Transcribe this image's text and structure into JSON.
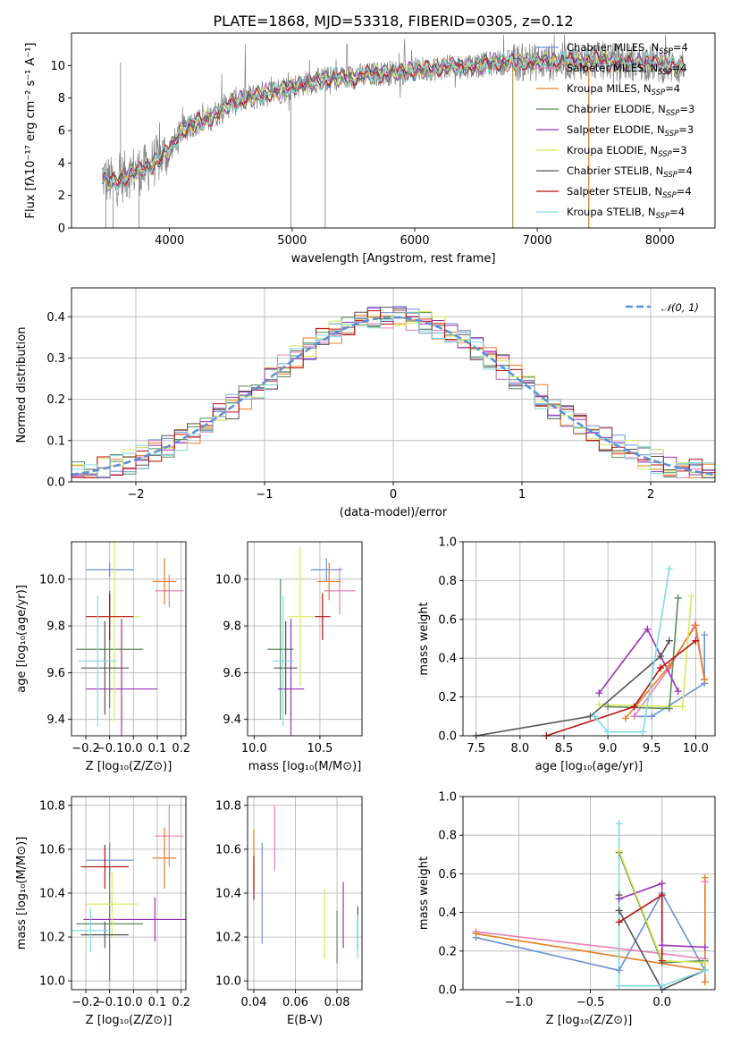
{
  "colors": {
    "chabrier_miles": "#6a8fd9",
    "salpeter_miles": "#e680b8",
    "kroupa_miles": "#e67e22",
    "chabrier_elodie": "#5a8a5a",
    "salpeter_elodie": "#9b30b8",
    "kroupa_elodie": "#d9e85a",
    "chabrier_stelib": "#555555",
    "salpeter_stelib": "#b80f0f",
    "kroupa_stelib": "#7fdbe0",
    "gaussian": "#5b8fd9"
  },
  "chart_data": [
    {
      "id": "spectrum",
      "type": "line",
      "title": "PLATE=1868, MJD=53318, FIBERID=0305, z=0.12",
      "xlabel": "wavelength [Angstrom, rest frame]",
      "ylabel": "Flux [fλ10⁻¹⁷ erg cm⁻² s⁻¹ A⁻¹]",
      "xlim": [
        3200,
        8450
      ],
      "ylim": [
        0,
        12
      ],
      "xticks": [
        "4000",
        "5000",
        "6000",
        "7000",
        "8000"
      ],
      "yticks": [
        "0",
        "2",
        "4",
        "6",
        "8",
        "10"
      ],
      "grid": false,
      "legend_position": "top-right",
      "legend": [
        {
          "label": "Chabrier MILES, N",
          "sub": "SSP",
          "suffix": "=4",
          "color_key": "chabrier_miles"
        },
        {
          "label": "Salpeter MILES, N",
          "sub": "SSP",
          "suffix": "=4",
          "color_key": "salpeter_miles"
        },
        {
          "label": "Kroupa MILES, N",
          "sub": "SSP",
          "suffix": "=4",
          "color_key": "kroupa_miles"
        },
        {
          "label": "Chabrier ELODIE, N",
          "sub": "SSP",
          "suffix": "=3",
          "color_key": "chabrier_elodie"
        },
        {
          "label": "Salpeter ELODIE, N",
          "sub": "SSP",
          "suffix": "=3",
          "color_key": "salpeter_elodie"
        },
        {
          "label": "Kroupa ELODIE, N",
          "sub": "SSP",
          "suffix": "=3",
          "color_key": "kroupa_elodie"
        },
        {
          "label": "Chabrier STELIB, N",
          "sub": "SSP",
          "suffix": "=4",
          "color_key": "chabrier_stelib"
        },
        {
          "label": "Salpeter STELIB, N",
          "sub": "SSP",
          "suffix": "=4",
          "color_key": "salpeter_stelib"
        },
        {
          "label": "Kroupa STELIB, N",
          "sub": "SSP",
          "suffix": "=4",
          "color_key": "kroupa_stelib"
        }
      ],
      "data_color": "#808080",
      "continuum": {
        "x": [
          3450,
          3500,
          3550,
          3600,
          3700,
          3800,
          3900,
          4000,
          4100,
          4200,
          4300,
          4500,
          4700,
          4900,
          5100,
          5300,
          5500,
          5700,
          5900,
          6100,
          6300,
          6500,
          6700,
          6900,
          7100,
          7300,
          7500,
          7700,
          7900,
          8100,
          8200
        ],
        "y": [
          3.2,
          2.9,
          2.8,
          3.0,
          3.5,
          3.6,
          4.2,
          4.8,
          6.0,
          6.5,
          6.6,
          7.7,
          8.1,
          8.5,
          8.9,
          9.2,
          9.3,
          9.5,
          9.6,
          9.8,
          9.9,
          10.0,
          10.2,
          10.2,
          10.2,
          10.3,
          10.3,
          10.2,
          10.2,
          10.0,
          9.9
        ]
      },
      "spikes": [
        {
          "x": 3480,
          "y": 0
        },
        {
          "x": 3540,
          "y": 0
        },
        {
          "x": 3600,
          "y": 10.2
        },
        {
          "x": 3750,
          "y": 0
        },
        {
          "x": 4990,
          "y": 0
        },
        {
          "x": 5270,
          "y": 0
        },
        {
          "x": 6800,
          "y": 0
        },
        {
          "x": 7420,
          "y": 0
        }
      ]
    },
    {
      "id": "residuals",
      "type": "histogram",
      "xlabel": "(data-model)/error",
      "ylabel": "Normed distribution",
      "xlim": [
        -2.5,
        2.5
      ],
      "ylim": [
        0,
        0.47
      ],
      "xticks": [
        "−2",
        "−1",
        "0",
        "1",
        "2"
      ],
      "yticks": [
        "0.0",
        "0.1",
        "0.2",
        "0.3",
        "0.4"
      ],
      "grid": true,
      "legend_position": "top-right",
      "legend": [
        {
          "label": "𝒩(0, 1)",
          "color_key": "gaussian",
          "dashed": true
        }
      ],
      "bin_width": 0.1
    },
    {
      "id": "age-vs-Z",
      "type": "errorbar",
      "xlabel": "Z [log₁₀(Z/Z⊙)]",
      "ylabel": "age  [log₁₀(age/yr)]",
      "xlim": [
        -0.26,
        0.22
      ],
      "ylim": [
        9.33,
        10.16
      ],
      "xticks": [
        "−0.2",
        "−0.1",
        "0.0",
        "0.1",
        "0.2"
      ],
      "yticks": [
        "9.4",
        "9.6",
        "9.8",
        "10.0"
      ],
      "grid": true,
      "points": [
        {
          "series": "chabrier_miles",
          "x": -0.1,
          "xerr": 0.1,
          "y": 10.04,
          "yerr": 0.03
        },
        {
          "series": "salpeter_miles",
          "x": 0.15,
          "xerr": 0.06,
          "y": 9.95,
          "yerr": 0.07
        },
        {
          "series": "kroupa_miles",
          "x": 0.13,
          "xerr": 0.05,
          "y": 9.99,
          "yerr": 0.1
        },
        {
          "series": "chabrier_elodie",
          "x": -0.1,
          "xerr": 0.14,
          "y": 9.7,
          "yerr": 0.25
        },
        {
          "series": "salpeter_elodie",
          "x": -0.05,
          "xerr": 0.15,
          "y": 9.53,
          "yerr": 0.3
        },
        {
          "series": "kroupa_elodie",
          "x": -0.08,
          "xerr": 0.11,
          "y": 9.84,
          "yerr": 0.45
        },
        {
          "series": "chabrier_stelib",
          "x": -0.12,
          "xerr": 0.1,
          "y": 9.62,
          "yerr": 0.2
        },
        {
          "series": "salpeter_stelib",
          "x": -0.1,
          "xerr": 0.1,
          "y": 9.84,
          "yerr": 0.1
        },
        {
          "series": "kroupa_stelib",
          "x": -0.15,
          "xerr": 0.08,
          "y": 9.65,
          "yerr": 0.28
        }
      ]
    },
    {
      "id": "age-vs-mass",
      "type": "errorbar",
      "xlabel": "mass [log₁₀(M/M⊙)]",
      "ylabel": "",
      "xlim": [
        9.95,
        10.82
      ],
      "ylim": [
        9.33,
        10.16
      ],
      "xticks": [
        "10.0",
        "10.5"
      ],
      "yticks": [
        "9.4",
        "9.6",
        "9.8",
        "10.0"
      ],
      "grid": true,
      "points": [
        {
          "series": "chabrier_miles",
          "x": 10.55,
          "xerr": 0.12,
          "y": 10.04,
          "yerr": 0.05
        },
        {
          "series": "salpeter_miles",
          "x": 10.65,
          "xerr": 0.12,
          "y": 9.95,
          "yerr": 0.1
        },
        {
          "series": "kroupa_miles",
          "x": 10.57,
          "xerr": 0.09,
          "y": 9.99,
          "yerr": 0.08
        },
        {
          "series": "chabrier_elodie",
          "x": 10.2,
          "xerr": 0.1,
          "y": 9.7,
          "yerr": 0.3
        },
        {
          "series": "salpeter_elodie",
          "x": 10.28,
          "xerr": 0.1,
          "y": 9.53,
          "yerr": 0.3
        },
        {
          "series": "kroupa_elodie",
          "x": 10.35,
          "xerr": 0.1,
          "y": 9.84,
          "yerr": 0.3
        },
        {
          "series": "chabrier_stelib",
          "x": 10.24,
          "xerr": 0.09,
          "y": 9.62,
          "yerr": 0.2
        },
        {
          "series": "salpeter_stelib",
          "x": 10.52,
          "xerr": 0.06,
          "y": 9.84,
          "yerr": 0.1
        },
        {
          "series": "kroupa_stelib",
          "x": 10.22,
          "xerr": 0.08,
          "y": 9.65,
          "yerr": 0.28
        }
      ]
    },
    {
      "id": "weight-vs-age",
      "type": "line",
      "xlabel": "age  [log₁₀(age/yr)]",
      "ylabel": "mass weight",
      "xlim": [
        7.35,
        10.22
      ],
      "ylim": [
        0,
        1
      ],
      "xticks": [
        "7.5",
        "8.0",
        "8.5",
        "9.0",
        "9.5",
        "10.0"
      ],
      "yticks": [
        "0.0",
        "0.2",
        "0.4",
        "0.6",
        "0.8",
        "1.0"
      ],
      "grid": true,
      "series": [
        {
          "key": "chabrier_miles",
          "x": [
            9.3,
            9.5,
            10.1,
            10.1
          ],
          "y": [
            0.1,
            0.1,
            0.27,
            0.52
          ]
        },
        {
          "key": "salpeter_miles",
          "x": [
            9.3,
            9.7,
            9.99,
            10.1
          ],
          "y": [
            0.1,
            0.35,
            0.57,
            0.29
          ]
        },
        {
          "key": "kroupa_miles",
          "x": [
            9.2,
            9.7,
            10.0,
            10.1
          ],
          "y": [
            0.09,
            0.36,
            0.57,
            0.29
          ]
        },
        {
          "key": "chabrier_elodie",
          "x": [
            9.0,
            9.7,
            9.8
          ],
          "y": [
            0.15,
            0.14,
            0.71
          ]
        },
        {
          "key": "salpeter_elodie",
          "x": [
            8.9,
            9.45,
            9.8
          ],
          "y": [
            0.22,
            0.55,
            0.23
          ]
        },
        {
          "key": "kroupa_elodie",
          "x": [
            8.9,
            9.85,
            9.95
          ],
          "y": [
            0.16,
            0.15,
            0.72
          ]
        },
        {
          "key": "chabrier_stelib",
          "x": [
            7.5,
            8.8,
            9.6,
            9.7
          ],
          "y": [
            0.0,
            0.1,
            0.41,
            0.49
          ]
        },
        {
          "key": "salpeter_stelib",
          "x": [
            8.3,
            9.3,
            9.6,
            10.0
          ],
          "y": [
            0.0,
            0.15,
            0.35,
            0.49
          ]
        },
        {
          "key": "kroupa_stelib",
          "x": [
            8.85,
            9.0,
            9.4,
            9.7
          ],
          "y": [
            0.1,
            0.02,
            0.02,
            0.86
          ]
        }
      ]
    },
    {
      "id": "mass-vs-Z",
      "type": "errorbar",
      "xlabel": "Z [log₁₀(Z/Z⊙)]",
      "ylabel": "mass [log₁₀(M/M⊙)]",
      "xlim": [
        -0.26,
        0.22
      ],
      "ylim": [
        9.96,
        10.84
      ],
      "xticks": [
        "−0.2",
        "−0.1",
        "0.0",
        "0.1",
        "0.2"
      ],
      "yticks": [
        "10.0",
        "10.2",
        "10.4",
        "10.6",
        "10.8"
      ],
      "grid": true,
      "points": [
        {
          "series": "chabrier_miles",
          "x": -0.1,
          "xerr": 0.1,
          "y": 10.55,
          "yerr": 0.08
        },
        {
          "series": "salpeter_miles",
          "x": 0.15,
          "xerr": 0.06,
          "y": 10.66,
          "yerr": 0.14
        },
        {
          "series": "kroupa_miles",
          "x": 0.13,
          "xerr": 0.05,
          "y": 10.56,
          "yerr": 0.14
        },
        {
          "series": "chabrier_elodie",
          "x": -0.1,
          "xerr": 0.14,
          "y": 10.26,
          "yerr": 0.26
        },
        {
          "series": "salpeter_elodie",
          "x": 0.09,
          "xerr": 0.3,
          "y": 10.28,
          "yerr": 0.1
        },
        {
          "series": "kroupa_elodie",
          "x": -0.09,
          "xerr": 0.11,
          "y": 10.35,
          "yerr": 0.15
        },
        {
          "series": "chabrier_stelib",
          "x": -0.12,
          "xerr": 0.1,
          "y": 10.21,
          "yerr": 0.06
        },
        {
          "series": "salpeter_stelib",
          "x": -0.12,
          "xerr": 0.1,
          "y": 10.52,
          "yerr": 0.1
        },
        {
          "series": "kroupa_stelib",
          "x": -0.18,
          "xerr": 0.08,
          "y": 10.23,
          "yerr": 0.1
        }
      ]
    },
    {
      "id": "mass-vs-ebv",
      "type": "errorbar",
      "xlabel": "E(B-V)",
      "ylabel": "",
      "xlim": [
        0.037,
        0.092
      ],
      "ylim": [
        9.96,
        10.84
      ],
      "xticks": [
        "0.04",
        "0.06",
        "0.08"
      ],
      "yticks": [
        "10.0",
        "10.2",
        "10.4",
        "10.6",
        "10.8"
      ],
      "grid": true,
      "points": [
        {
          "series": "chabrier_miles",
          "x": 0.044,
          "y": 10.4,
          "yerr": 0.23
        },
        {
          "series": "salpeter_miles",
          "x": 0.05,
          "y": 10.65,
          "yerr": 0.15
        },
        {
          "series": "kroupa_miles",
          "x": 0.04,
          "y": 10.55,
          "yerr": 0.14
        },
        {
          "series": "chabrier_elodie",
          "x": 0.08,
          "y": 10.2,
          "yerr": 0.12
        },
        {
          "series": "salpeter_elodie",
          "x": 0.083,
          "y": 10.3,
          "yerr": 0.15
        },
        {
          "series": "kroupa_elodie",
          "x": 0.074,
          "y": 10.26,
          "yerr": 0.16
        },
        {
          "series": "chabrier_stelib",
          "x": 0.09,
          "y": 10.24,
          "yerr": 0.1
        },
        {
          "series": "salpeter_stelib",
          "x": 0.04,
          "y": 10.47,
          "yerr": 0.1
        },
        {
          "series": "kroupa_stelib",
          "x": 0.09,
          "y": 10.2,
          "yerr": 0.1
        }
      ]
    },
    {
      "id": "weight-vs-Z",
      "type": "line",
      "xlabel": "Z [log₁₀(Z/Z⊙)]",
      "ylabel": "mass weight",
      "xlim": [
        -1.39,
        0.37
      ],
      "ylim": [
        0,
        1
      ],
      "xticks": [
        "−1.0",
        "−0.5",
        "0.0"
      ],
      "yticks": [
        "0.0",
        "0.2",
        "0.4",
        "0.6",
        "0.8",
        "1.0"
      ],
      "grid": true,
      "series": [
        {
          "key": "chabrier_miles",
          "x": [
            -1.3,
            -0.3,
            0.0,
            0.3
          ],
          "y": [
            0.27,
            0.1,
            0.5,
            0.1
          ]
        },
        {
          "key": "salpeter_miles",
          "x": [
            -1.3,
            0.3,
            0.3,
            0.3
          ],
          "y": [
            0.3,
            0.16,
            0.04,
            0.56
          ]
        },
        {
          "key": "kroupa_miles",
          "x": [
            -1.3,
            0.3,
            0.3,
            0.3
          ],
          "y": [
            0.29,
            0.1,
            0.04,
            0.58
          ]
        },
        {
          "key": "chabrier_elodie",
          "x": [
            -0.3,
            0.0,
            0.3
          ],
          "y": [
            0.71,
            0.14,
            0.15
          ]
        },
        {
          "key": "salpeter_elodie",
          "x": [
            -0.3,
            0.0,
            0.0,
            0.3
          ],
          "y": [
            0.47,
            0.55,
            0.23,
            0.22
          ]
        },
        {
          "key": "kroupa_elodie",
          "x": [
            -0.3,
            0.0,
            0.3
          ],
          "y": [
            0.72,
            0.15,
            0.14
          ]
        },
        {
          "key": "chabrier_stelib",
          "x": [
            -0.3,
            -0.3,
            0.0,
            0.3
          ],
          "y": [
            0.49,
            0.41,
            0.0,
            0.1
          ]
        },
        {
          "key": "salpeter_stelib",
          "x": [
            -0.3,
            0.0,
            0.0
          ],
          "y": [
            0.35,
            0.49,
            0.15
          ]
        },
        {
          "key": "kroupa_stelib",
          "x": [
            -0.3,
            -0.3,
            0.0,
            0.3
          ],
          "y": [
            0.86,
            0.02,
            0.02,
            0.1
          ]
        }
      ]
    }
  ]
}
